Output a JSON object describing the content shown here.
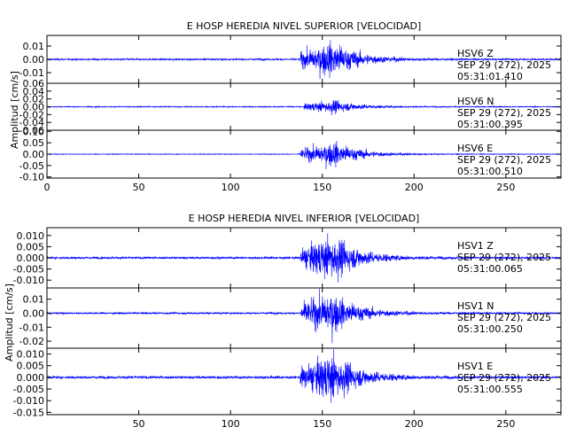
{
  "chart_data": [
    {
      "type": "line",
      "title": "E HOSP HEREDIA NIVEL SUPERIOR [VELOCIDAD]",
      "ylabel": "Amplitud [cm/s]",
      "xlim": [
        0,
        280
      ],
      "xticks": [
        0,
        50,
        100,
        150,
        200,
        250
      ],
      "color": "#0000ff",
      "panels": [
        {
          "station": "HSV6",
          "component": "Z",
          "date": "SEP 29 (272), 2025",
          "time": "05:31:01.410",
          "ylim": [
            -0.018,
            0.018
          ],
          "yticks": [
            0.01,
            0.0,
            -0.01
          ],
          "yticklabels": [
            "0.01",
            "0.00",
            "-0.01"
          ],
          "noise": 0.0008,
          "peak": 0.016,
          "onset": 138,
          "peak_time": 156
        },
        {
          "station": "HSV6",
          "component": "N",
          "date": "SEP 29 (272), 2025",
          "time": "05:31:00.395",
          "ylim": [
            -0.06,
            0.06
          ],
          "yticks": [
            0.06,
            0.04,
            0.02,
            0.0,
            -0.02,
            -0.04,
            -0.06
          ],
          "yticklabels": [
            "0.06",
            "0.04",
            "0.02",
            "0.00",
            "-0.02",
            "-0.04",
            "-0.06"
          ],
          "noise": 0.0015,
          "peak": 0.02,
          "onset": 140,
          "peak_time": 156
        },
        {
          "station": "HSV6",
          "component": "E",
          "date": "SEP 29 (272), 2025",
          "time": "05:31:00.510",
          "ylim": [
            -0.105,
            0.105
          ],
          "yticks": [
            0.1,
            0.05,
            0.0,
            -0.05,
            -0.1
          ],
          "yticklabels": [
            "0.10",
            "0.05",
            "0.00",
            "-0.05",
            "-0.10"
          ],
          "noise": 0.002,
          "peak": 0.065,
          "onset": 138,
          "peak_time": 157
        }
      ]
    },
    {
      "type": "line",
      "title": "E HOSP HEREDIA NIVEL INFERIOR [VELOCIDAD]",
      "ylabel": "Amplitud [cm/s]",
      "xlim": [
        0,
        280
      ],
      "xticks": [
        50,
        100,
        150,
        200,
        250
      ],
      "color": "#0000ff",
      "panels": [
        {
          "station": "HSV1",
          "component": "Z",
          "date": "SEP 29 (272), 2025",
          "time": "05:31:00.065",
          "ylim": [
            -0.0135,
            0.0135
          ],
          "yticks": [
            0.01,
            0.005,
            0.0,
            -0.005,
            -0.01
          ],
          "yticklabels": [
            "0.010",
            "0.005",
            "0.000",
            "-0.005",
            "-0.010"
          ],
          "noise": 0.0006,
          "peak": 0.012,
          "onset": 138,
          "peak_time": 156
        },
        {
          "station": "HSV1",
          "component": "N",
          "date": "SEP 29 (272), 2025",
          "time": "05:31:00.250",
          "ylim": [
            -0.025,
            0.018
          ],
          "yticks": [
            0.01,
            0.0,
            -0.01,
            -0.02
          ],
          "yticklabels": [
            "0.01",
            "0.00",
            "-0.01",
            "-0.02"
          ],
          "noise": 0.0008,
          "peak": 0.018,
          "onset": 138,
          "peak_time": 155
        },
        {
          "station": "HSV1",
          "component": "E",
          "date": "SEP 29 (272), 2025",
          "time": "05:31:00.555",
          "ylim": [
            -0.016,
            0.0125
          ],
          "yticks": [
            0.01,
            0.005,
            0.0,
            -0.005,
            -0.01,
            -0.015
          ],
          "yticklabels": [
            "0.010",
            "0.005",
            "0.000",
            "-0.005",
            "-0.010",
            "-0.015"
          ],
          "noise": 0.0007,
          "peak": 0.012,
          "onset": 138,
          "peak_time": 156
        }
      ]
    }
  ]
}
